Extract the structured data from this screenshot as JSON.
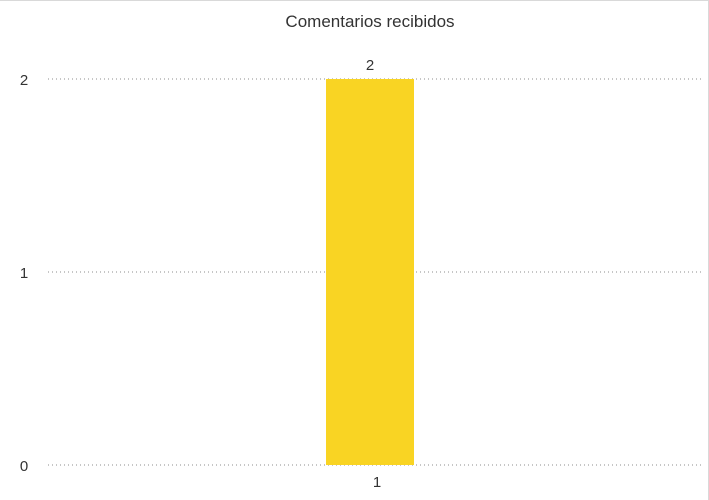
{
  "chart_data": {
    "type": "bar",
    "title": "Comentarios recibidos",
    "categories": [
      "1"
    ],
    "values": [
      2
    ],
    "data_labels": [
      "2"
    ],
    "ylim": [
      0,
      2
    ],
    "yticks": [
      0,
      1,
      2
    ],
    "xlabel": "",
    "ylabel": "",
    "grid": "dotted horizontal",
    "legend": "none",
    "colors": {
      "bar": "#f9d423",
      "grid": "#8c8c8c",
      "text": "#333333"
    }
  }
}
